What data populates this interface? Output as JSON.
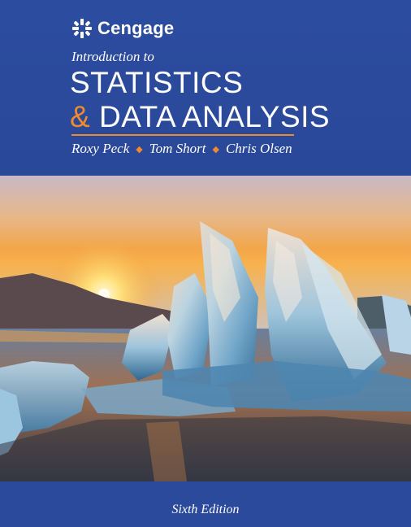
{
  "publisher": {
    "name": "Cengage",
    "logo_icon": "cengage-star-logo-icon"
  },
  "book": {
    "subtitle": "Introduction to",
    "title_line1": "STATISTICS",
    "title_amp": "&",
    "title_line2_rest": "DATA ANALYSIS",
    "authors": [
      "Roxy Peck",
      "Tom Short",
      "Chris Olsen"
    ],
    "author_separator": "◆",
    "edition": "Sixth Edition"
  },
  "colors": {
    "background_blue": "#2a4a9c",
    "accent_orange": "#f08a2c"
  },
  "cover_image": {
    "subject": "ice formations at sunset over water"
  }
}
